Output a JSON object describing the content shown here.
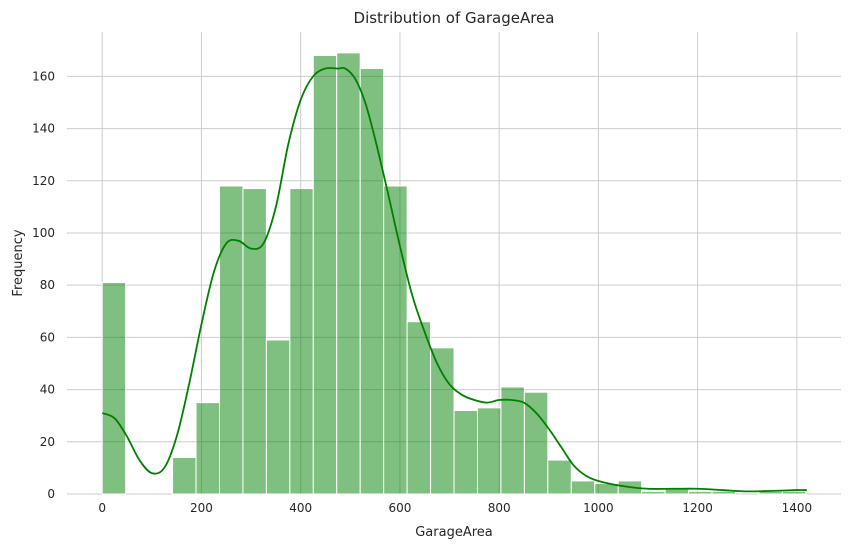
{
  "chart_data": {
    "type": "bar",
    "title": "Distribution of GarageArea",
    "xlabel": "GarageArea",
    "ylabel": "Frequency",
    "xlim": [
      -71,
      1489
    ],
    "ylim": [
      0,
      177
    ],
    "xticks": [
      0,
      200,
      400,
      600,
      800,
      1000,
      1200,
      1400
    ],
    "yticks": [
      0,
      20,
      40,
      60,
      80,
      100,
      120,
      140,
      160
    ],
    "grid": true,
    "bar_color": "#008000",
    "bar_alpha": 0.5,
    "bin_width": 47.27,
    "bin_start": 0,
    "values": [
      81,
      0,
      0,
      14,
      35,
      118,
      117,
      59,
      117,
      168,
      169,
      163,
      118,
      66,
      56,
      32,
      33,
      41,
      39,
      13,
      5,
      4,
      5,
      1,
      2,
      1,
      1,
      0,
      1,
      1
    ],
    "kde": {
      "color": "#008000",
      "x": [
        0,
        25,
        50,
        75,
        100,
        125,
        150,
        175,
        200,
        225,
        250,
        275,
        300,
        325,
        350,
        375,
        400,
        425,
        450,
        475,
        490,
        510,
        530,
        550,
        575,
        600,
        625,
        650,
        675,
        700,
        725,
        750,
        775,
        800,
        825,
        850,
        875,
        900,
        925,
        950,
        975,
        1000,
        1050,
        1100,
        1150,
        1200,
        1250,
        1300,
        1350,
        1400,
        1420
      ],
      "y": [
        31,
        29,
        22,
        13,
        8,
        10,
        22,
        42,
        65,
        85,
        96,
        97,
        94,
        96,
        110,
        134,
        151,
        160,
        163,
        163,
        163,
        159,
        150,
        136,
        116,
        95,
        76,
        62,
        50,
        42,
        38,
        36,
        35,
        36,
        36,
        35,
        31,
        25,
        18,
        11,
        7,
        5,
        3,
        2,
        2,
        2,
        1.5,
        1,
        1.2,
        1.5,
        1.5
      ]
    }
  }
}
